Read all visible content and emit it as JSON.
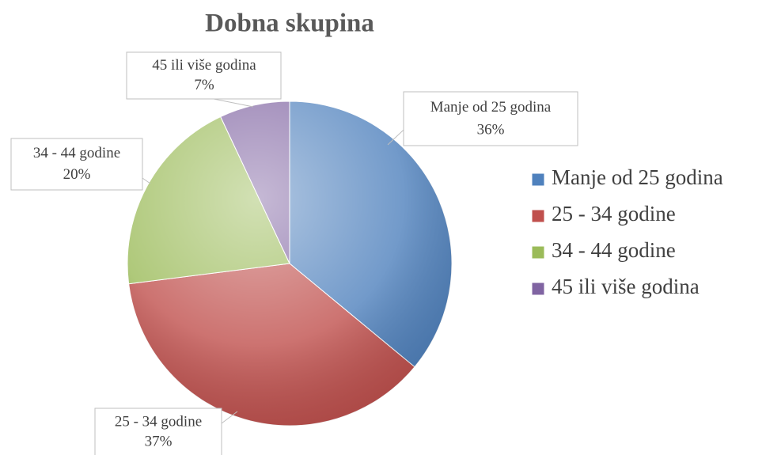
{
  "chart_data": {
    "type": "pie",
    "title": "Dobna skupina",
    "categories": [
      "Manje od 25 godina",
      "25 - 34 godine",
      "34 - 44 godine",
      "45 ili više godina"
    ],
    "values": [
      36,
      37,
      20,
      7
    ],
    "value_labels": [
      "36%",
      "37%",
      "20%",
      "7%"
    ],
    "colors": [
      "#4f81bd",
      "#c0504d",
      "#9bbb59",
      "#8064a2"
    ],
    "legend": "right"
  }
}
